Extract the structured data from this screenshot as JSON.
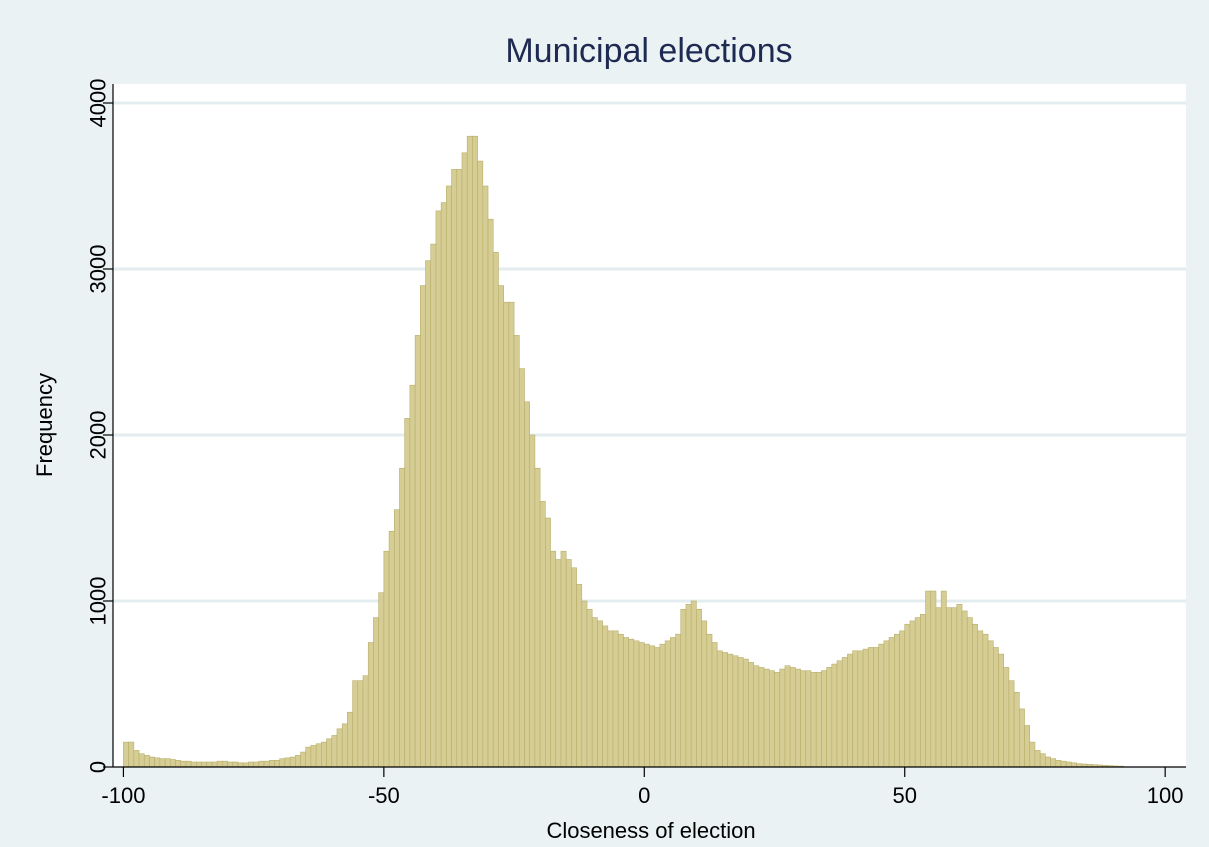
{
  "chart_data": {
    "type": "bar",
    "title": "Municipal elections",
    "xlabel": "Closeness of election",
    "ylabel": "Frequency",
    "xlim": [
      -102,
      104
    ],
    "ylim": [
      0,
      4000
    ],
    "x_ticks": [
      -100,
      -50,
      0,
      50,
      100
    ],
    "y_ticks": [
      0,
      1000,
      2000,
      3000,
      4000
    ],
    "grid": "horizontal",
    "colors": {
      "background": "#eaf2f3",
      "plot_background": "#ffffff",
      "bar_fill": "#d5cd94",
      "bar_stroke": "#b8ae6a",
      "gridline": "#e3ecee",
      "title": "#1e2a52"
    },
    "bins": {
      "start": -100,
      "width": 1,
      "values": [
        150,
        150,
        100,
        80,
        70,
        60,
        55,
        50,
        50,
        45,
        40,
        35,
        35,
        30,
        30,
        30,
        30,
        30,
        35,
        35,
        30,
        30,
        25,
        25,
        30,
        30,
        35,
        35,
        40,
        40,
        50,
        55,
        60,
        70,
        90,
        120,
        130,
        140,
        150,
        170,
        190,
        230,
        260,
        330,
        520,
        520,
        550,
        750,
        900,
        1050,
        1300,
        1420,
        1550,
        1800,
        2100,
        2300,
        2600,
        2900,
        3050,
        3150,
        3350,
        3400,
        3500,
        3600,
        3600,
        3700,
        3800,
        3800,
        3650,
        3500,
        3300,
        3100,
        2900,
        2800,
        2800,
        2600,
        2400,
        2200,
        2000,
        1800,
        1600,
        1500,
        1300,
        1250,
        1300,
        1250,
        1200,
        1100,
        1000,
        950,
        900,
        880,
        850,
        820,
        820,
        800,
        780,
        770,
        760,
        750,
        740,
        730,
        720,
        740,
        760,
        780,
        800,
        950,
        980,
        1000,
        950,
        880,
        800,
        750,
        700,
        690,
        680,
        670,
        660,
        650,
        630,
        610,
        600,
        590,
        580,
        570,
        590,
        610,
        600,
        590,
        580,
        580,
        570,
        570,
        580,
        600,
        620,
        640,
        660,
        680,
        700,
        700,
        710,
        720,
        720,
        740,
        760,
        780,
        800,
        820,
        860,
        880,
        900,
        920,
        1060,
        1060,
        960,
        1060,
        960,
        960,
        980,
        940,
        900,
        860,
        820,
        800,
        760,
        720,
        680,
        600,
        520,
        450,
        350,
        250,
        150,
        100,
        80,
        60,
        50,
        40,
        35,
        30,
        25,
        20,
        18,
        16,
        14,
        12,
        10,
        8,
        6,
        5
      ]
    }
  }
}
